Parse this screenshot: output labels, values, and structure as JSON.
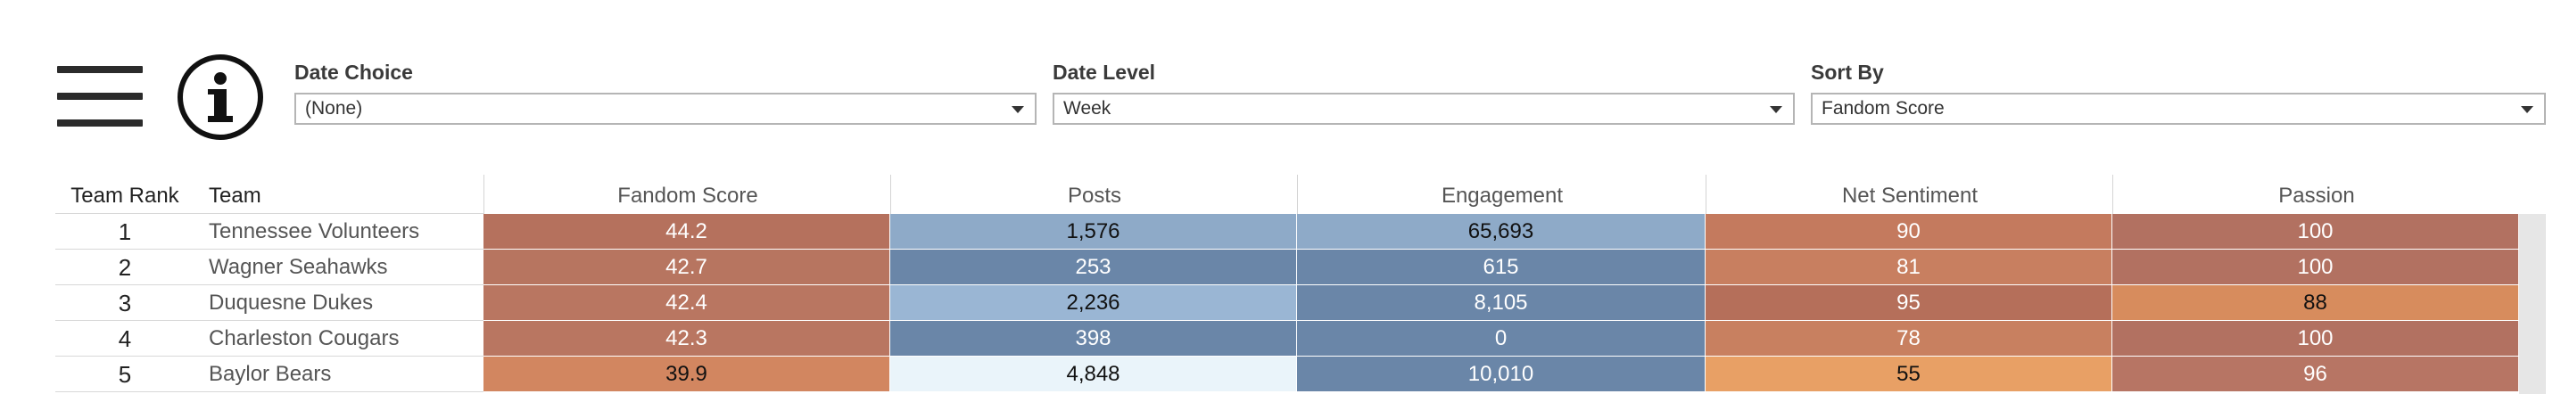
{
  "toolbar": {
    "menu_icon": "hamburger-menu-icon",
    "info_icon": "info-icon"
  },
  "filters": {
    "date_choice": {
      "label": "Date Choice",
      "value": "(None)"
    },
    "date_level": {
      "label": "Date Level",
      "value": "Week"
    },
    "sort_by": {
      "label": "Sort By",
      "value": "Fandom Score"
    }
  },
  "table": {
    "headers": {
      "rank": "Team Rank",
      "team": "Team",
      "fandom": "Fandom Score",
      "posts": "Posts",
      "engagement": "Engagement",
      "sentiment": "Net Sentiment",
      "passion": "Passion"
    },
    "rows": [
      {
        "rank": "1",
        "team": "Tennessee Volunteers",
        "fandom": "44.2",
        "posts": "1,576",
        "engagement": "65,693",
        "sentiment": "90",
        "passion": "100"
      },
      {
        "rank": "2",
        "team": "Wagner Seahawks",
        "fandom": "42.7",
        "posts": "253",
        "engagement": "615",
        "sentiment": "81",
        "passion": "100"
      },
      {
        "rank": "3",
        "team": "Duquesne Dukes",
        "fandom": "42.4",
        "posts": "2,236",
        "engagement": "8,105",
        "sentiment": "95",
        "passion": "88"
      },
      {
        "rank": "4",
        "team": "Charleston Cougars",
        "fandom": "42.3",
        "posts": "398",
        "engagement": "0",
        "sentiment": "78",
        "passion": "100"
      },
      {
        "rank": "5",
        "team": "Baylor Bears",
        "fandom": "39.9",
        "posts": "4,848",
        "engagement": "10,010",
        "sentiment": "55",
        "passion": "96"
      }
    ],
    "cell_colors": [
      {
        "fandom": "#b5715d",
        "posts": "#8eaac8",
        "engagement": "#8eaac8",
        "sentiment": "#c47a5e",
        "passion": "#b27161"
      },
      {
        "fandom": "#b77560",
        "posts": "#6a86a8",
        "engagement": "#6a86a8",
        "sentiment": "#c87f60",
        "passion": "#b27161"
      },
      {
        "fandom": "#b97661",
        "posts": "#9ab6d4",
        "engagement": "#6a86a8",
        "sentiment": "#b56f5a",
        "passion": "#d78c5d"
      },
      {
        "fandom": "#b97661",
        "posts": "#6a86a8",
        "engagement": "#6a86a8",
        "sentiment": "#c88060",
        "passion": "#b27161"
      },
      {
        "fandom": "#d28660",
        "posts": "#eaf4fa",
        "engagement": "#6a86a8",
        "sentiment": "#e8a065",
        "passion": "#b77564"
      }
    ],
    "text_colors": [
      {
        "fandom": "#ffffff",
        "posts": "#111111",
        "engagement": "#111111",
        "sentiment": "#ffffff",
        "passion": "#ffffff"
      },
      {
        "fandom": "#ffffff",
        "posts": "#ffffff",
        "engagement": "#ffffff",
        "sentiment": "#ffffff",
        "passion": "#ffffff"
      },
      {
        "fandom": "#ffffff",
        "posts": "#111111",
        "engagement": "#ffffff",
        "sentiment": "#ffffff",
        "passion": "#111111"
      },
      {
        "fandom": "#ffffff",
        "posts": "#ffffff",
        "engagement": "#ffffff",
        "sentiment": "#ffffff",
        "passion": "#ffffff"
      },
      {
        "fandom": "#111111",
        "posts": "#111111",
        "engagement": "#ffffff",
        "sentiment": "#111111",
        "passion": "#ffffff"
      }
    ]
  }
}
